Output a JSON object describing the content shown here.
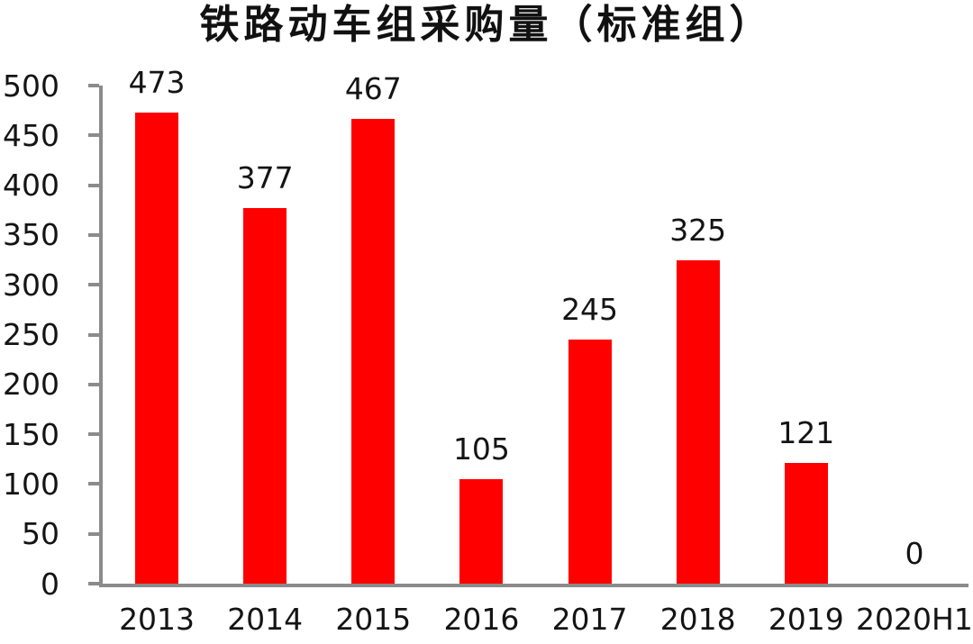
{
  "chart_data": {
    "type": "bar",
    "title": "铁路动车组采购量（标准组）",
    "categories": [
      "2013",
      "2014",
      "2015",
      "2016",
      "2017",
      "2018",
      "2019",
      "2020H1"
    ],
    "values": [
      473,
      377,
      467,
      105,
      245,
      325,
      121,
      0
    ],
    "value_labels": [
      "473",
      "377",
      "467",
      "105",
      "245",
      "325",
      "121",
      "0"
    ],
    "xlabel": "",
    "ylabel": "",
    "ylim": [
      0,
      500
    ],
    "yticks": [
      0,
      50,
      100,
      150,
      200,
      250,
      300,
      350,
      400,
      450,
      500
    ],
    "grid": false,
    "legend": false,
    "bar_color": "#ff0000",
    "axis_color": "#8b8b8b",
    "text_color": "#141414"
  }
}
